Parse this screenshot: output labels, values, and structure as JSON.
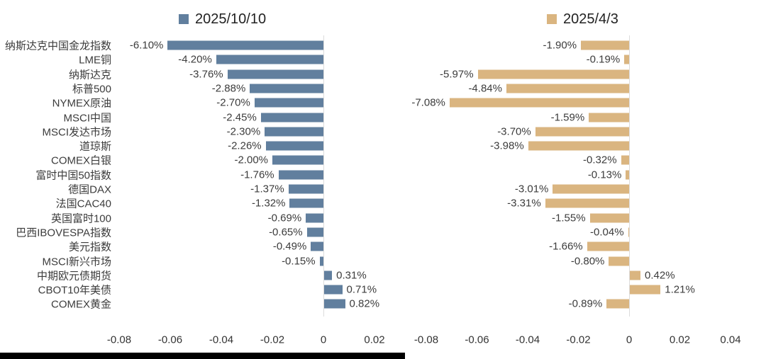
{
  "colors": {
    "series1": "#617F9E",
    "series2": "#DAB580",
    "zero_line": "#DCDCDC",
    "text": "#3C3C3C",
    "bottom_bar": "#000000"
  },
  "bottom_bar": {
    "visible": true
  },
  "chart_data": {
    "type": "bar",
    "orientation": "horizontal",
    "grid": "zero-line-only",
    "legend_position": "top",
    "categories": [
      "纳斯达克中国金龙指数",
      "LME铜",
      "纳斯达克",
      "标普500",
      "NYMEX原油",
      "MSCI中国",
      "MSCI发达市场",
      "道琼斯",
      "COMEX白银",
      "富时中国50指数",
      "德国DAX",
      "法国CAC40",
      "英国富时100",
      "巴西IBOVESPA指数",
      "美元指数",
      "MSCI新兴市场",
      "中期欧元债期货",
      "CBOT10年美债",
      "COMEX黄金"
    ],
    "series": [
      {
        "name": "2025/10/10",
        "color": "#617F9E",
        "values_pct": [
          -6.1,
          -4.2,
          -3.76,
          -2.88,
          -2.7,
          -2.45,
          -2.3,
          -2.26,
          -2.0,
          -1.76,
          -1.37,
          -1.32,
          -0.69,
          -0.65,
          -0.49,
          -0.15,
          0.31,
          0.71,
          0.82
        ],
        "labels": [
          "-6.10%",
          "-4.20%",
          "-3.76%",
          "-2.88%",
          "-2.70%",
          "-2.45%",
          "-2.30%",
          "-2.26%",
          "-2.00%",
          "-1.76%",
          "-1.37%",
          "-1.32%",
          "-0.69%",
          "-0.65%",
          "-0.49%",
          "-0.15%",
          "0.31%",
          "0.71%",
          "0.82%"
        ],
        "xtick_labels": [
          "-0.08",
          "-0.06",
          "-0.04",
          "-0.02",
          "0",
          "0.02"
        ],
        "xlim": [
          -0.09,
          0.025
        ]
      },
      {
        "name": "2025/4/3",
        "color": "#DAB580",
        "values_pct": [
          -1.9,
          -0.19,
          -5.97,
          -4.84,
          -7.08,
          -1.59,
          -3.7,
          -3.98,
          -0.32,
          -0.13,
          -3.01,
          -3.31,
          -1.55,
          -0.04,
          -1.66,
          -0.8,
          0.42,
          1.21,
          -0.89
        ],
        "labels": [
          "-1.90%",
          "-0.19%",
          "-5.97%",
          "-4.84%",
          "-7.08%",
          "-1.59%",
          "-3.70%",
          "-3.98%",
          "-0.32%",
          "-0.13%",
          "-3.01%",
          "-3.31%",
          "-1.55%",
          "-0.04%",
          "-1.66%",
          "-0.80%",
          "0.42%",
          "1.21%",
          "-0.89%"
        ],
        "xtick_labels": [
          "-0.08",
          "-0.06",
          "-0.04",
          "-0.02",
          "0",
          "0.02",
          "0.04"
        ],
        "xlim": [
          -0.085,
          0.045
        ]
      }
    ]
  }
}
